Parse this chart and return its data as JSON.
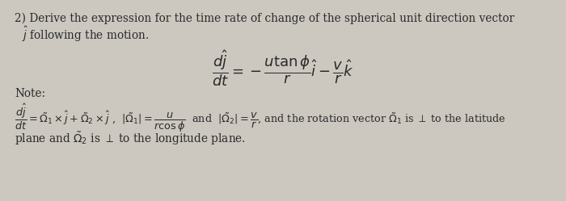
{
  "background_color": "#ccc8c0",
  "figsize": [
    7.0,
    2.49
  ],
  "dpi": 100,
  "text_color": "#2a2a2a",
  "line1": "2) Derive the expression for the time rate of change of the spherical unit direction vector",
  "line2": "    $\\hat{j}$ following the motion.",
  "main_eq": "$\\dfrac{d\\hat{j}}{dt} = -\\dfrac{u\\tan\\phi}{r}\\hat{i} - \\dfrac{v}{r}\\hat{k}$",
  "note_label": "Note:",
  "note_eq_line": "$\\dfrac{d\\hat{j}}{dt} = \\tilde{\\Omega}_1 \\times \\hat{j} + \\tilde{\\Omega}_2 \\times \\hat{j}$ ,  $|\\tilde{\\Omega}_1| = \\dfrac{u}{r\\cos\\phi}$  and  $|\\tilde{\\Omega}_2| = \\dfrac{v}{r}$, and the rotation vector $\\tilde{\\Omega}_1$ is $\\perp$ to the latitude",
  "note_last_line": "plane and $\\tilde{\\Omega}_2$ is $\\perp$ to the longitude plane."
}
